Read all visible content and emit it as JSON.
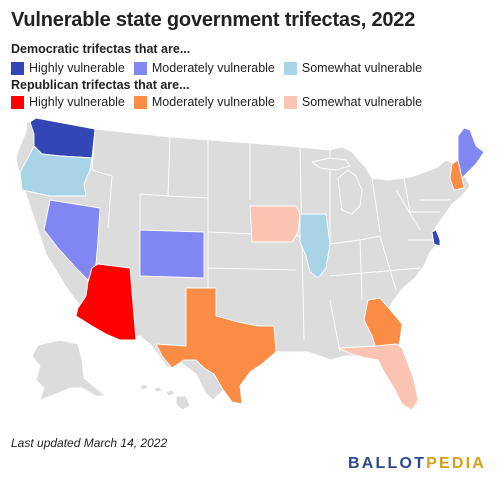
{
  "title": "Vulnerable state government trifectas, 2022",
  "legend": {
    "democratic": {
      "heading": "Democratic trifectas that are...",
      "items": [
        {
          "label": "Highly vulnerable",
          "color": "#3346b5"
        },
        {
          "label": "Moderately vulnerable",
          "color": "#8187f2"
        },
        {
          "label": "Somewhat vulnerable",
          "color": "#a9d4e8"
        }
      ]
    },
    "republican": {
      "heading": "Republican trifectas that are...",
      "items": [
        {
          "label": "Highly vulnerable",
          "color": "#ff0000"
        },
        {
          "label": "Moderately vulnerable",
          "color": "#fa8c46"
        },
        {
          "label": "Somewhat vulnerable",
          "color": "#fbc3b1"
        }
      ]
    }
  },
  "map": {
    "default_color": "#dcdcdc",
    "highlighted_states": [
      {
        "state": "Washington",
        "category": "Democratic - Highly vulnerable",
        "color": "#3346b5"
      },
      {
        "state": "Delaware",
        "category": "Democratic - Highly vulnerable",
        "color": "#3346b5"
      },
      {
        "state": "Nevada",
        "category": "Democratic - Moderately vulnerable",
        "color": "#8187f2"
      },
      {
        "state": "Colorado",
        "category": "Democratic - Moderately vulnerable",
        "color": "#8187f2"
      },
      {
        "state": "Maine",
        "category": "Democratic - Moderately vulnerable",
        "color": "#8187f2"
      },
      {
        "state": "Oregon",
        "category": "Democratic - Somewhat vulnerable",
        "color": "#a9d4e8"
      },
      {
        "state": "Illinois",
        "category": "Democratic - Somewhat vulnerable",
        "color": "#a9d4e8"
      },
      {
        "state": "Arizona",
        "category": "Republican - Highly vulnerable",
        "color": "#ff0000"
      },
      {
        "state": "Texas",
        "category": "Republican - Moderately vulnerable",
        "color": "#fa8c46"
      },
      {
        "state": "Georgia",
        "category": "Republican - Moderately vulnerable",
        "color": "#fa8c46"
      },
      {
        "state": "New Hampshire",
        "category": "Republican - Moderately vulnerable",
        "color": "#fa8c46"
      },
      {
        "state": "Iowa",
        "category": "Republican - Somewhat vulnerable",
        "color": "#fbc3b1"
      },
      {
        "state": "Florida",
        "category": "Republican - Somewhat vulnerable",
        "color": "#fbc3b1"
      }
    ]
  },
  "footer": {
    "updated": "Last updated March 14, 2022",
    "brand_main": "BALLOT",
    "brand_accent": "PEDIA"
  }
}
